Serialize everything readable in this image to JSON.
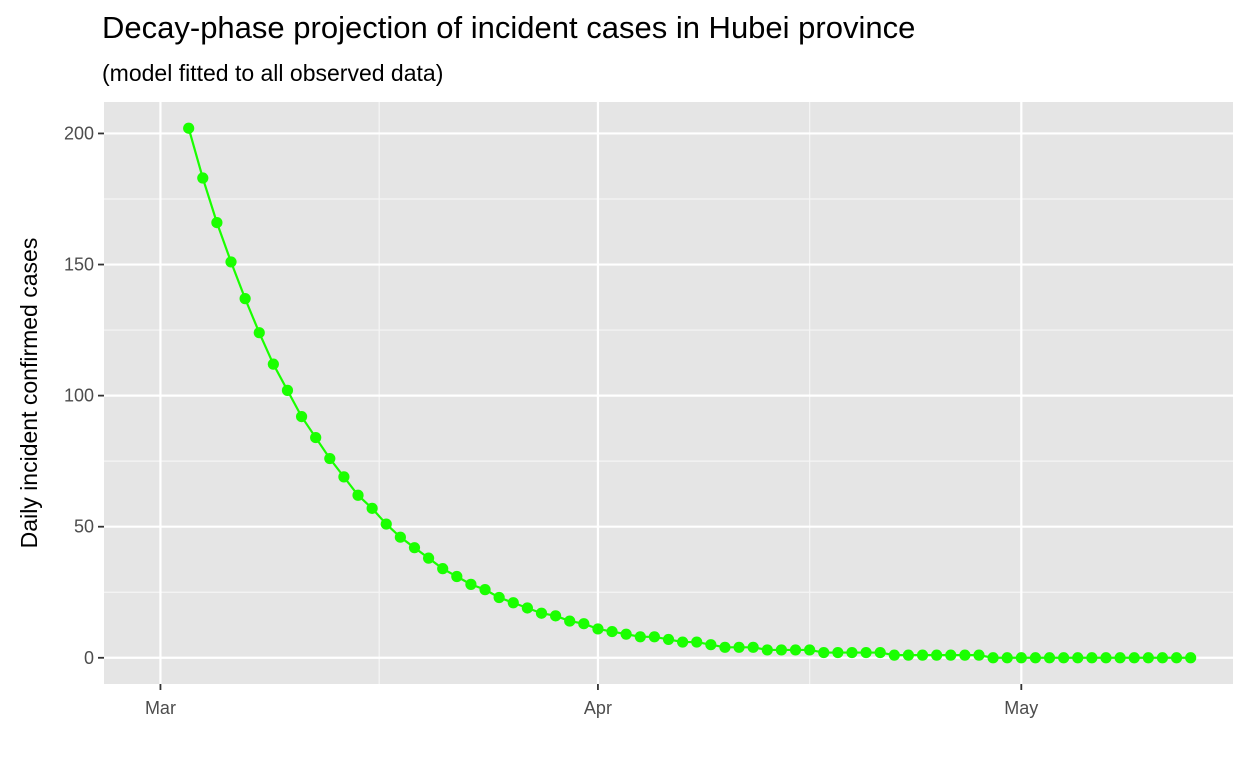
{
  "chart_data": {
    "type": "line",
    "title": "Decay-phase projection of incident cases in Hubei province",
    "subtitle": "(model fitted to all observed data)",
    "xlabel": "",
    "ylabel": "Daily incident confirmed cases",
    "x_ticks": [
      {
        "date": "2020-03-01",
        "label": "Mar"
      },
      {
        "date": "2020-04-01",
        "label": "Apr"
      },
      {
        "date": "2020-05-01",
        "label": "May"
      }
    ],
    "y_ticks": [
      0,
      50,
      100,
      150,
      200
    ],
    "xlim": [
      "2020-02-26",
      "2020-05-16"
    ],
    "ylim": [
      -10,
      212
    ],
    "grid": true,
    "legend": "none",
    "series": [
      {
        "color": "#1aff00",
        "x": [
          "2020-03-03",
          "2020-03-04",
          "2020-03-05",
          "2020-03-06",
          "2020-03-07",
          "2020-03-08",
          "2020-03-09",
          "2020-03-10",
          "2020-03-11",
          "2020-03-12",
          "2020-03-13",
          "2020-03-14",
          "2020-03-15",
          "2020-03-16",
          "2020-03-17",
          "2020-03-18",
          "2020-03-19",
          "2020-03-20",
          "2020-03-21",
          "2020-03-22",
          "2020-03-23",
          "2020-03-24",
          "2020-03-25",
          "2020-03-26",
          "2020-03-27",
          "2020-03-28",
          "2020-03-29",
          "2020-03-30",
          "2020-03-31",
          "2020-04-01",
          "2020-04-02",
          "2020-04-03",
          "2020-04-04",
          "2020-04-05",
          "2020-04-06",
          "2020-04-07",
          "2020-04-08",
          "2020-04-09",
          "2020-04-10",
          "2020-04-11",
          "2020-04-12",
          "2020-04-13",
          "2020-04-14",
          "2020-04-15",
          "2020-04-16",
          "2020-04-17",
          "2020-04-18",
          "2020-04-19",
          "2020-04-20",
          "2020-04-21",
          "2020-04-22",
          "2020-04-23",
          "2020-04-24",
          "2020-04-25",
          "2020-04-26",
          "2020-04-27",
          "2020-04-28",
          "2020-04-29",
          "2020-04-30",
          "2020-05-01",
          "2020-05-02",
          "2020-05-03",
          "2020-05-04",
          "2020-05-05",
          "2020-05-06",
          "2020-05-07",
          "2020-05-08",
          "2020-05-09",
          "2020-05-10",
          "2020-05-11",
          "2020-05-12",
          "2020-05-13"
        ],
        "y": [
          202,
          183,
          166,
          151,
          137,
          124,
          112,
          102,
          92,
          84,
          76,
          69,
          62,
          57,
          51,
          46,
          42,
          38,
          34,
          31,
          28,
          26,
          23,
          21,
          19,
          17,
          16,
          14,
          13,
          11,
          10,
          9,
          8,
          8,
          7,
          6,
          6,
          5,
          4,
          4,
          4,
          3,
          3,
          3,
          3,
          2,
          2,
          2,
          2,
          2,
          1,
          1,
          1,
          1,
          1,
          1,
          1,
          0,
          0,
          0,
          0,
          0,
          0,
          0,
          0,
          0,
          0,
          0,
          0,
          0,
          0,
          0
        ]
      }
    ]
  }
}
